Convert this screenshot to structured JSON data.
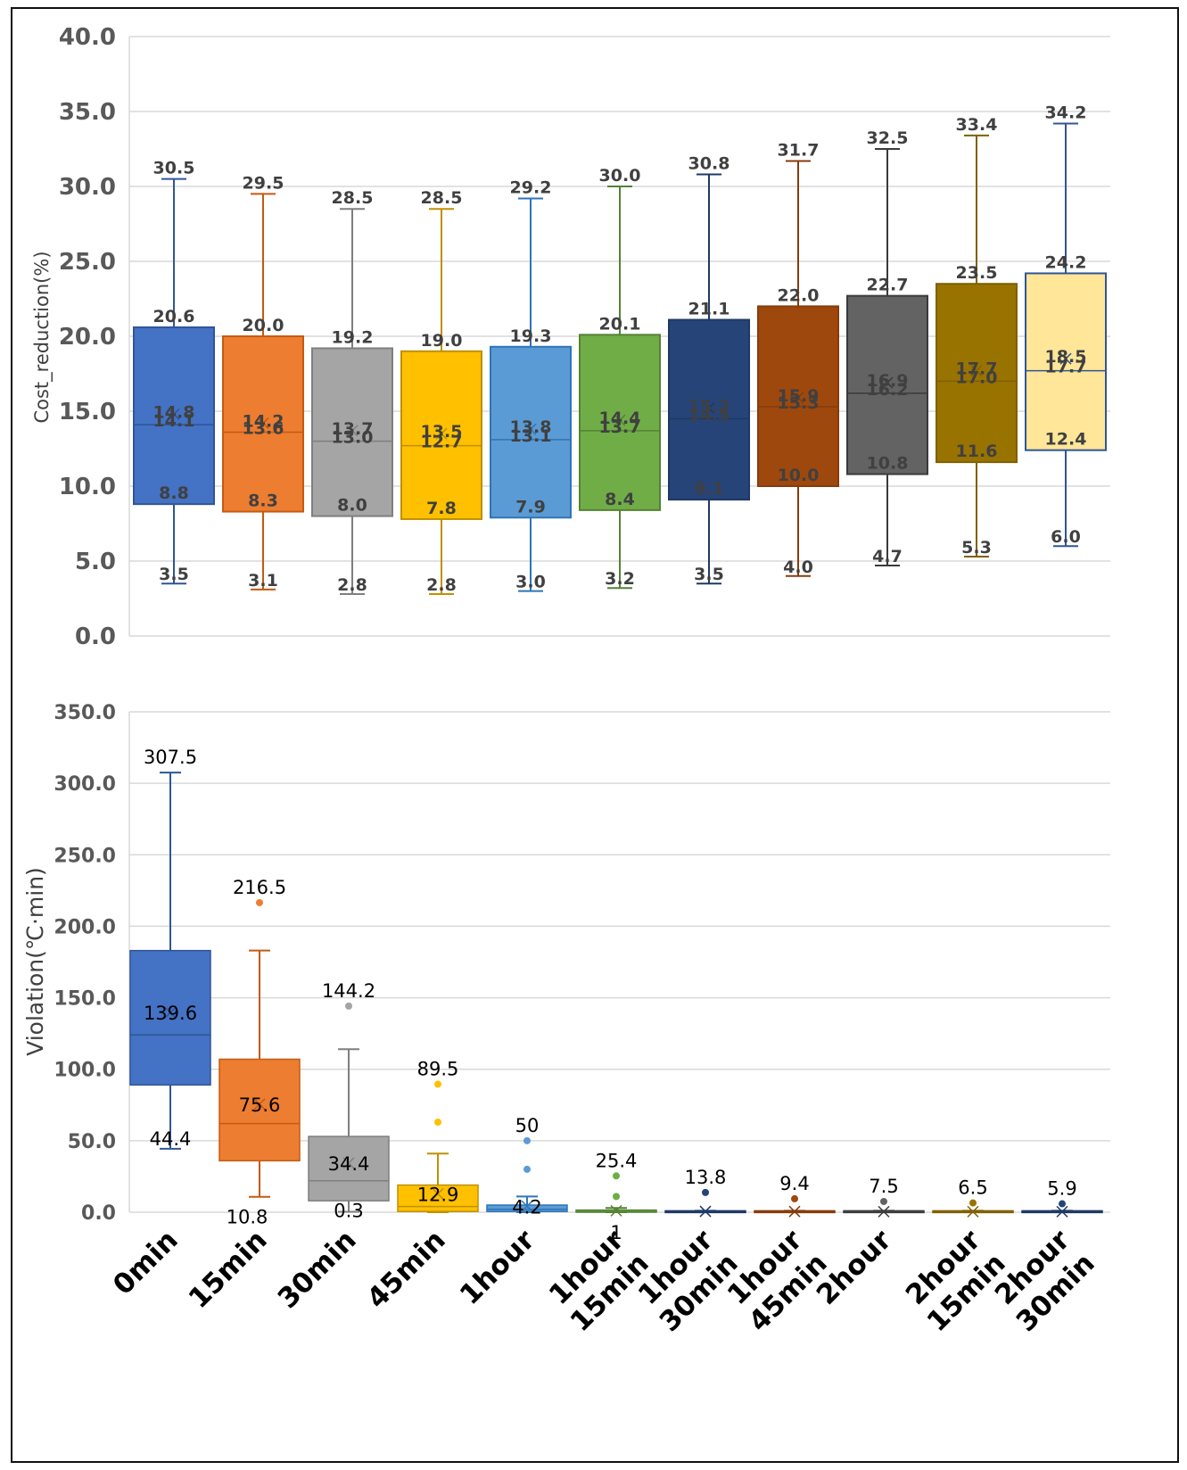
{
  "chart_data": [
    {
      "type": "box",
      "title": "",
      "ylabel": "Cost_reduction(%)",
      "ylim": [
        0,
        40
      ],
      "yticks": [
        "0.0",
        "5.0",
        "10.0",
        "15.0",
        "20.0",
        "25.0",
        "30.0",
        "35.0",
        "40.0"
      ],
      "grid": true,
      "series": [
        {
          "name": "0min",
          "whisker_low": 3.5,
          "q1": 8.8,
          "median": 14.1,
          "mean": 14.8,
          "q3": 20.6,
          "whisker_high": 30.5,
          "color": "#4472C4"
        },
        {
          "name": "15min",
          "whisker_low": 3.1,
          "q1": 8.3,
          "median": 13.6,
          "mean": 14.2,
          "q3": 20.0,
          "whisker_high": 29.5,
          "color": "#ED7D31"
        },
        {
          "name": "30min",
          "whisker_low": 2.8,
          "q1": 8.0,
          "median": 13.0,
          "mean": 13.7,
          "q3": 19.2,
          "whisker_high": 28.5,
          "color": "#A5A5A5"
        },
        {
          "name": "45min",
          "whisker_low": 2.8,
          "q1": 7.8,
          "median": 12.7,
          "mean": 13.5,
          "q3": 19.0,
          "whisker_high": 28.5,
          "color": "#FFC000"
        },
        {
          "name": "1hour",
          "whisker_low": 3.0,
          "q1": 7.9,
          "median": 13.1,
          "mean": 13.8,
          "q3": 19.3,
          "whisker_high": 29.2,
          "color": "#5B9BD5"
        },
        {
          "name": "1hour 15min",
          "whisker_low": 3.2,
          "q1": 8.4,
          "median": 13.7,
          "mean": 14.4,
          "q3": 20.1,
          "whisker_high": 30.0,
          "color": "#70AD47"
        },
        {
          "name": "1hour 30min",
          "whisker_low": 3.5,
          "q1": 9.1,
          "median": 14.5,
          "mean": 15.2,
          "q3": 21.1,
          "whisker_high": 30.8,
          "color": "#264478"
        },
        {
          "name": "1hour 45min",
          "whisker_low": 4.0,
          "q1": 10.0,
          "median": 15.3,
          "mean": 15.9,
          "q3": 22.0,
          "whisker_high": 31.7,
          "color": "#9E480E"
        },
        {
          "name": "2hour",
          "whisker_low": 4.7,
          "q1": 10.8,
          "median": 16.2,
          "mean": 16.9,
          "q3": 22.7,
          "whisker_high": 32.5,
          "color": "#636363"
        },
        {
          "name": "2hour 15min",
          "whisker_low": 5.3,
          "q1": 11.6,
          "median": 17.0,
          "mean": 17.7,
          "q3": 23.5,
          "whisker_high": 33.4,
          "color": "#997300"
        },
        {
          "name": "2hour 30min",
          "whisker_low": 6.0,
          "q1": 12.4,
          "median": 17.7,
          "mean": 18.5,
          "q3": 24.2,
          "whisker_high": 34.2,
          "color": "#FFE699"
        }
      ],
      "labels": [
        [
          "30.5",
          "20.6",
          "14.8",
          "14.1",
          "8.8",
          "3.5"
        ],
        [
          "29.5",
          "20.0",
          "14.2",
          "13.6",
          "8.3",
          "3.1"
        ],
        [
          "28.5",
          "19.2",
          "13.7",
          "13.0",
          "8.0",
          "2.8"
        ],
        [
          "28.5",
          "19.0",
          "13.5",
          "12.7",
          "7.8",
          "2.8"
        ],
        [
          "29.2",
          "19.3",
          "13.8",
          "13.1",
          "7.9",
          "3.0"
        ],
        [
          "30.0",
          "20.1",
          "14.4",
          "13.7",
          "8.4",
          "3.2"
        ],
        [
          "30.8",
          "21.1",
          "15.2",
          "14.5",
          "9.1",
          "3.5"
        ],
        [
          "31.7",
          "22.0",
          "15.9",
          "15.3",
          "10.0",
          "4.0"
        ],
        [
          "32.5",
          "22.7",
          "16.9",
          "16.2",
          "10.8",
          "4.7"
        ],
        [
          "33.4",
          "23.5",
          "17.7",
          "17.0",
          "11.6",
          "5.3"
        ],
        [
          "34.2",
          "24.2",
          "18.5",
          "17.7",
          "12.4",
          "6.0"
        ]
      ]
    },
    {
      "type": "box",
      "title": "",
      "ylabel": "Violation(℃·min)",
      "ylim": [
        0,
        350
      ],
      "yticks": [
        "0.0",
        "50.0",
        "100.0",
        "150.0",
        "200.0",
        "250.0",
        "300.0",
        "350.0"
      ],
      "grid": true,
      "series": [
        {
          "name": "0min",
          "whisker_low": 44.4,
          "q1": 89,
          "median": 124,
          "mean": 139.6,
          "q3": 183,
          "whisker_high": 307.5,
          "outliers": [],
          "color": "#4472C4",
          "labels": [
            {
              "text": "307.5",
              "value": 307.5
            },
            {
              "text": "139.6",
              "value": 139.6
            },
            {
              "text": "44.4",
              "value": 44.4
            }
          ]
        },
        {
          "name": "15min",
          "whisker_low": 10.8,
          "q1": 36,
          "median": 62,
          "mean": 75.6,
          "q3": 107,
          "whisker_high": 183,
          "outliers": [
            216.5
          ],
          "color": "#ED7D31",
          "labels": [
            {
              "text": "216.5",
              "value": 216.5
            },
            {
              "text": "75.6",
              "value": 75.6
            },
            {
              "text": "10.8",
              "value": 10.8
            }
          ]
        },
        {
          "name": "30min",
          "whisker_low": 0.3,
          "q1": 8,
          "median": 22,
          "mean": 34.4,
          "q3": 53,
          "whisker_high": 114,
          "outliers": [
            144.2
          ],
          "color": "#A5A5A5",
          "labels": [
            {
              "text": "144.2",
              "value": 144.2
            },
            {
              "text": "34.4",
              "value": 34.4
            },
            {
              "text": "0.3",
              "value": 0.3
            }
          ]
        },
        {
          "name": "45min",
          "whisker_low": 0,
          "q1": 0.5,
          "median": 4,
          "mean": 12.9,
          "q3": 19,
          "whisker_high": 41,
          "outliers": [
            63,
            89.5
          ],
          "color": "#FFC000",
          "labels": [
            {
              "text": "89.5",
              "value": 89.5
            },
            {
              "text": "12.9",
              "value": 12.9
            }
          ]
        },
        {
          "name": "1hour",
          "whisker_low": 0,
          "q1": 0.5,
          "median": 2,
          "mean": 4.2,
          "q3": 5,
          "whisker_high": 11,
          "outliers": [
            30,
            50
          ],
          "color": "#5B9BD5",
          "labels": [
            {
              "text": "50",
              "value": 50
            },
            {
              "text": "4.2",
              "value": 4.2
            }
          ]
        },
        {
          "name": "1hour 15min",
          "whisker_low": 0,
          "q1": 0,
          "median": 0.3,
          "mean": 1,
          "q3": 1.5,
          "whisker_high": 3,
          "outliers": [
            11,
            25.4
          ],
          "color": "#70AD47",
          "labels": [
            {
              "text": "25.4",
              "value": 25.4
            },
            {
              "text": "1",
              "value": 1
            }
          ]
        },
        {
          "name": "1hour 30min",
          "whisker_low": 0,
          "q1": 0,
          "median": 0,
          "mean": 0.6,
          "q3": 1,
          "whisker_high": 1,
          "outliers": [
            13.8
          ],
          "color": "#264478",
          "labels": [
            {
              "text": "13.8",
              "value": 13.8
            }
          ]
        },
        {
          "name": "1hour 45min",
          "whisker_low": 0,
          "q1": 0,
          "median": 0,
          "mean": 0.5,
          "q3": 1,
          "whisker_high": 1,
          "outliers": [
            9.4
          ],
          "color": "#9E480E",
          "labels": [
            {
              "text": "9.4",
              "value": 9.4
            }
          ]
        },
        {
          "name": "2hour",
          "whisker_low": 0,
          "q1": 0,
          "median": 0,
          "mean": 0.4,
          "q3": 1,
          "whisker_high": 1,
          "outliers": [
            7.5
          ],
          "color": "#636363",
          "labels": [
            {
              "text": "7.5",
              "value": 7.5
            }
          ]
        },
        {
          "name": "2hour 15min",
          "whisker_low": 0,
          "q1": 0,
          "median": 0,
          "mean": 0.4,
          "q3": 1,
          "whisker_high": 1,
          "outliers": [
            6.5
          ],
          "color": "#997300",
          "labels": [
            {
              "text": "6.5",
              "value": 6.5
            }
          ]
        },
        {
          "name": "2hour 30min",
          "whisker_low": 0,
          "q1": 0,
          "median": 0,
          "mean": 0.4,
          "q3": 1,
          "whisker_high": 1,
          "outliers": [
            5.9
          ],
          "color": "#264478",
          "labels": [
            {
              "text": "5.9",
              "value": 5.9
            }
          ]
        }
      ]
    }
  ],
  "categories": [
    [
      "0min"
    ],
    [
      "15min"
    ],
    [
      "30min"
    ],
    [
      "45min"
    ],
    [
      "1hour"
    ],
    [
      "1hour",
      "15min"
    ],
    [
      "1hour",
      "30min"
    ],
    [
      "1hour",
      "45min"
    ],
    [
      "2hour"
    ],
    [
      "2hour",
      "15min"
    ],
    [
      "2hour",
      "30min"
    ]
  ]
}
